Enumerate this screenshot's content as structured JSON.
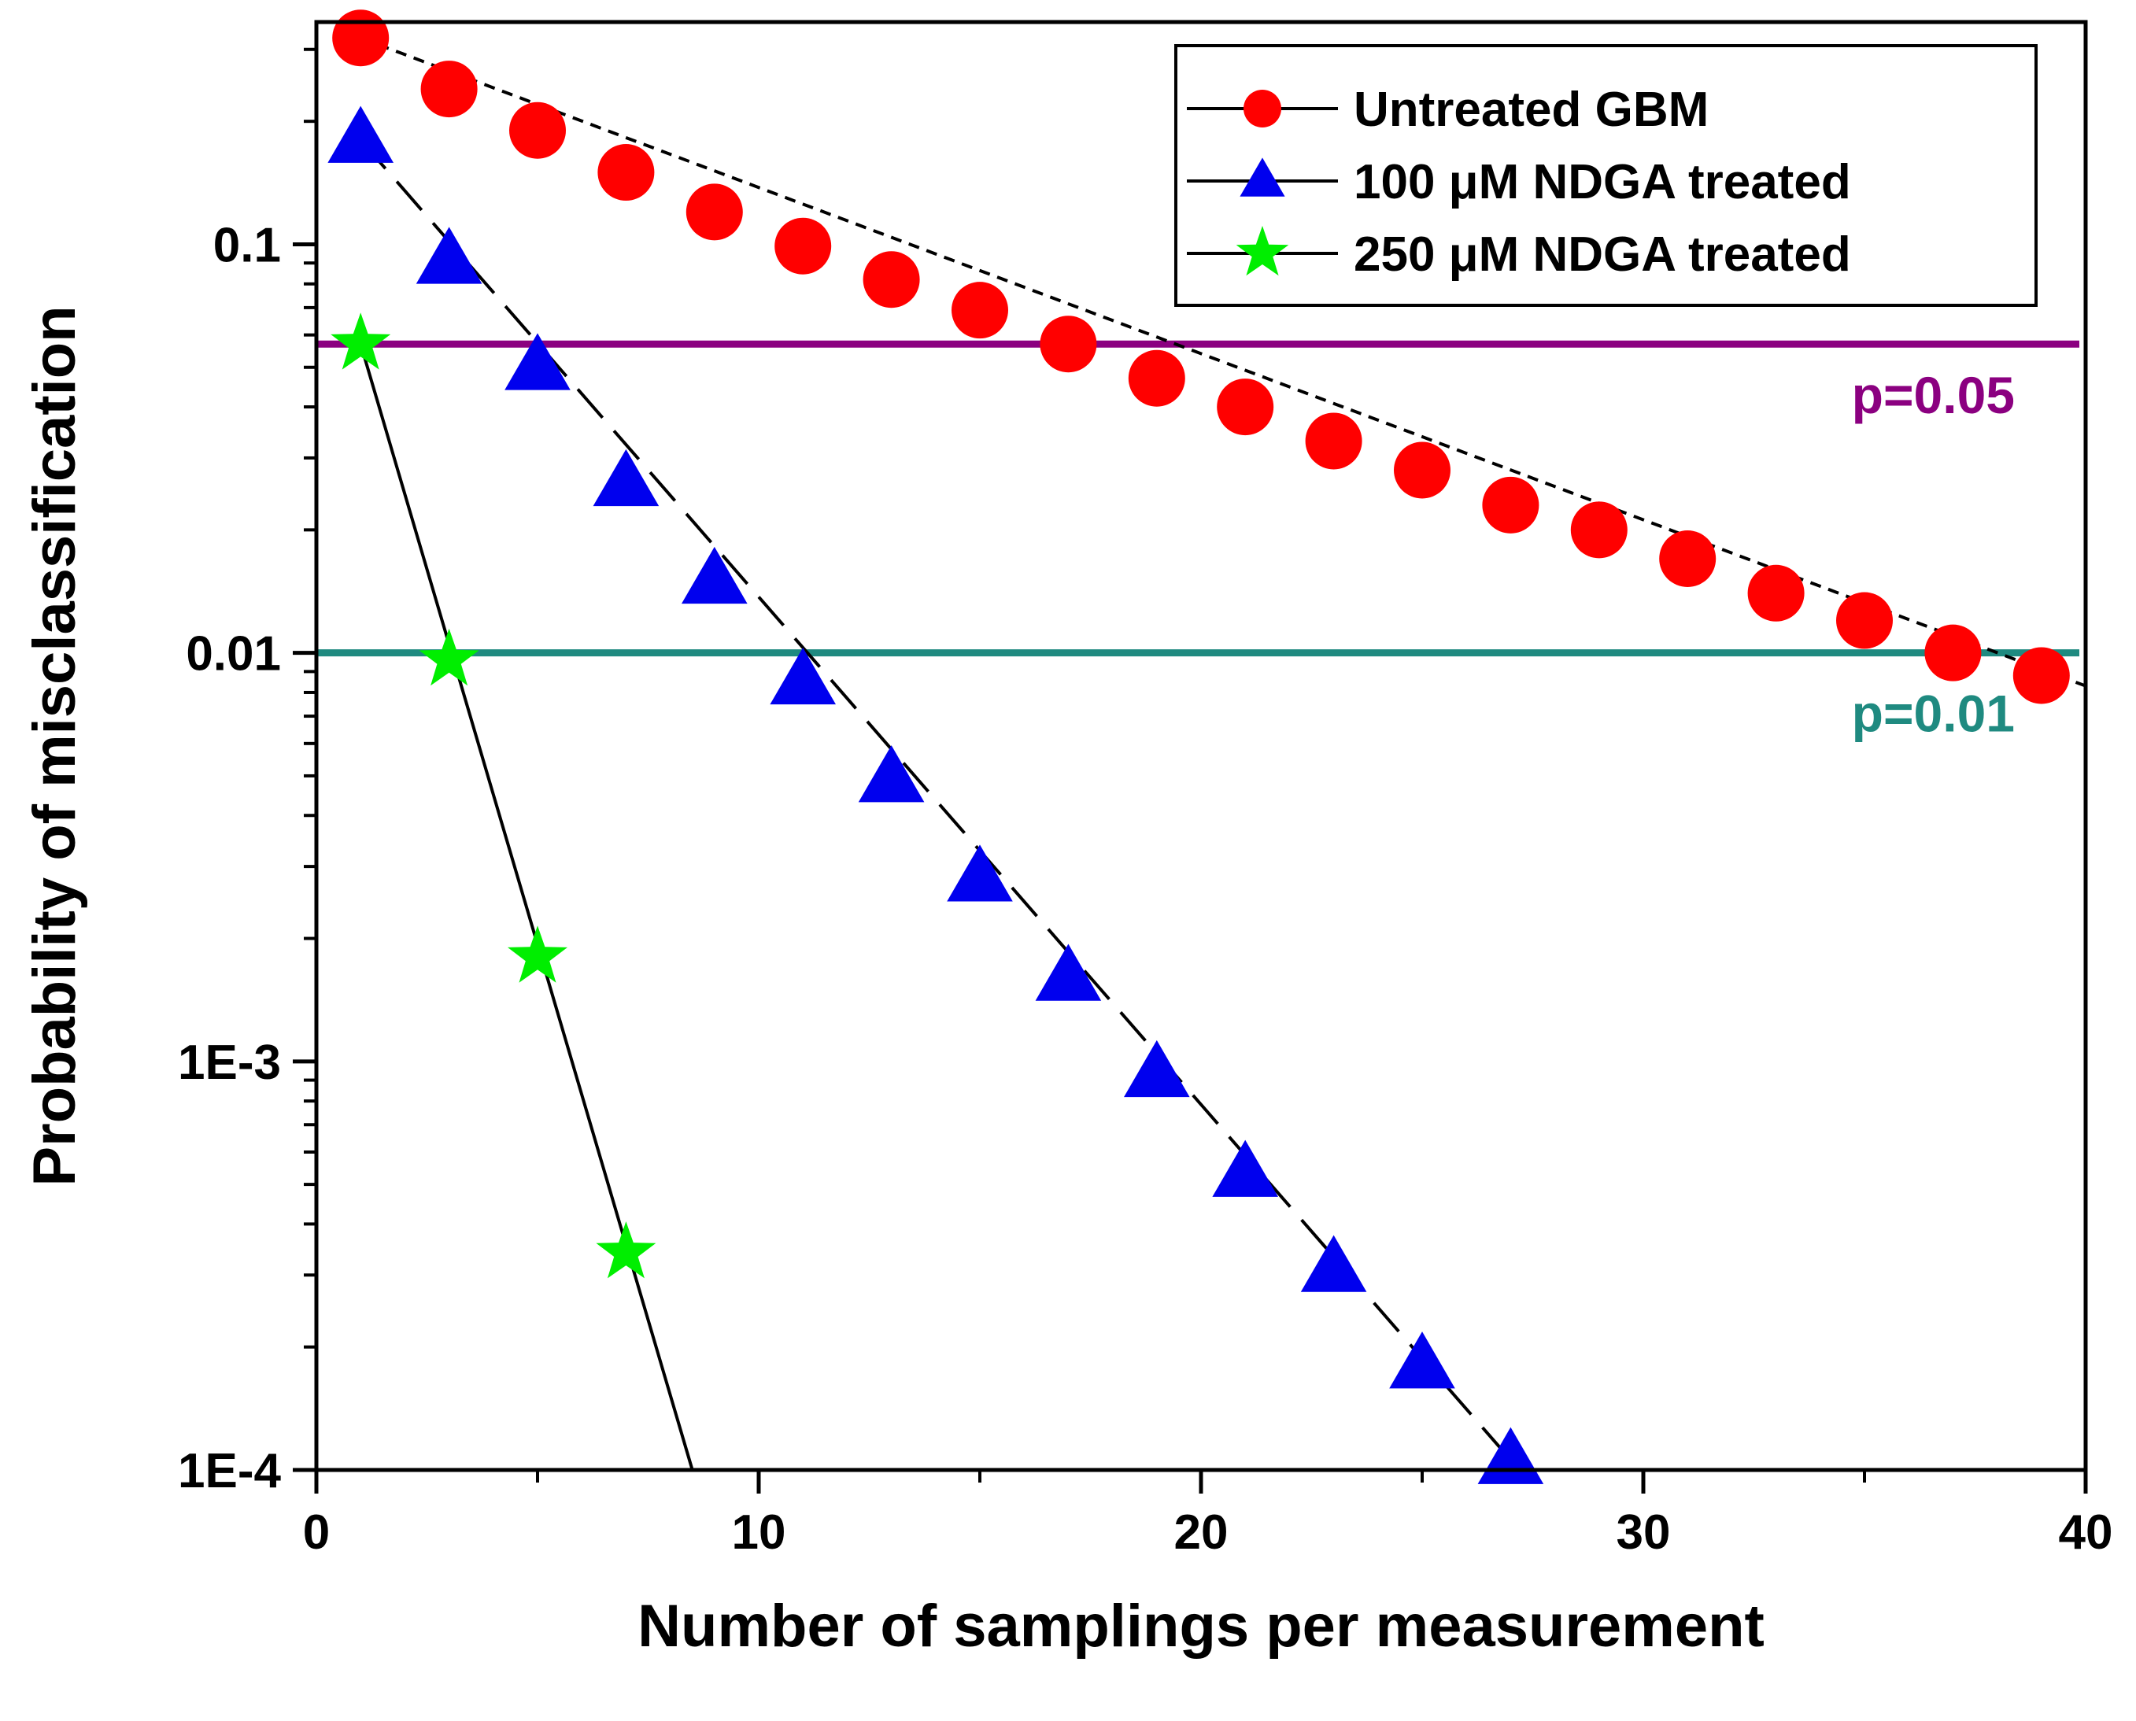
{
  "chart_data": {
    "type": "scatter",
    "xlabel": "Number of samplings per measurement",
    "ylabel": "Probability of misclassification",
    "xlim": [
      0,
      40
    ],
    "ylim": [
      0.0001,
      0.35
    ],
    "yscale": "log",
    "x_ticks": [
      "0",
      "10",
      "20",
      "30",
      "40"
    ],
    "y_ticks": [
      {
        "value": 0.1,
        "label": "0.1"
      },
      {
        "value": 0.01,
        "label": "0.01"
      },
      {
        "value": 0.001,
        "label": "1E-3"
      },
      {
        "value": 0.0001,
        "label": "1E-4"
      }
    ],
    "grid": false,
    "legend_position": "top-right",
    "series": [
      {
        "name": "Untreated GBM",
        "color": "#ff0000",
        "marker": "circle",
        "line": "short-dash",
        "x": [
          1,
          3,
          5,
          7,
          9,
          11,
          13,
          15,
          17,
          19,
          21,
          23,
          25,
          27,
          29,
          31,
          33,
          35,
          37,
          39
        ],
        "y": [
          0.32,
          0.24,
          0.19,
          0.15,
          0.12,
          0.099,
          0.082,
          0.069,
          0.057,
          0.047,
          0.04,
          0.033,
          0.028,
          0.023,
          0.02,
          0.017,
          0.014,
          0.012,
          0.01,
          0.0088
        ],
        "fit": {
          "x": [
            1,
            40
          ],
          "y": [
            0.32,
            0.0083
          ]
        }
      },
      {
        "name": "100 μM NDGA treated",
        "color": "#0000ee",
        "marker": "triangle",
        "line": "long-dash",
        "x": [
          1,
          3,
          5,
          7,
          9,
          11,
          13,
          15,
          17,
          19,
          21,
          23,
          25,
          27
        ],
        "y": [
          0.18,
          0.091,
          0.05,
          0.026,
          0.015,
          0.0085,
          0.0049,
          0.0028,
          0.0016,
          0.00093,
          0.00053,
          0.00031,
          0.00018,
          0.000105
        ],
        "fit": {
          "x": [
            1,
            27.2
          ],
          "y": [
            0.18,
            0.0001
          ]
        }
      },
      {
        "name": "250 μM NDGA treated",
        "color": "#00ee00",
        "marker": "star",
        "line": "solid",
        "x": [
          1,
          3,
          5,
          7
        ],
        "y": [
          0.057,
          0.0096,
          0.0018,
          0.00034
        ],
        "fit": {
          "x": [
            1,
            8.5
          ],
          "y": [
            0.057,
            0.0001
          ]
        }
      }
    ],
    "reference_lines": [
      {
        "y": 0.057,
        "label": "p=0.05",
        "color": "#8b0080"
      },
      {
        "y": 0.01,
        "label": "p=0.01",
        "color": "#1f8a80"
      }
    ]
  }
}
